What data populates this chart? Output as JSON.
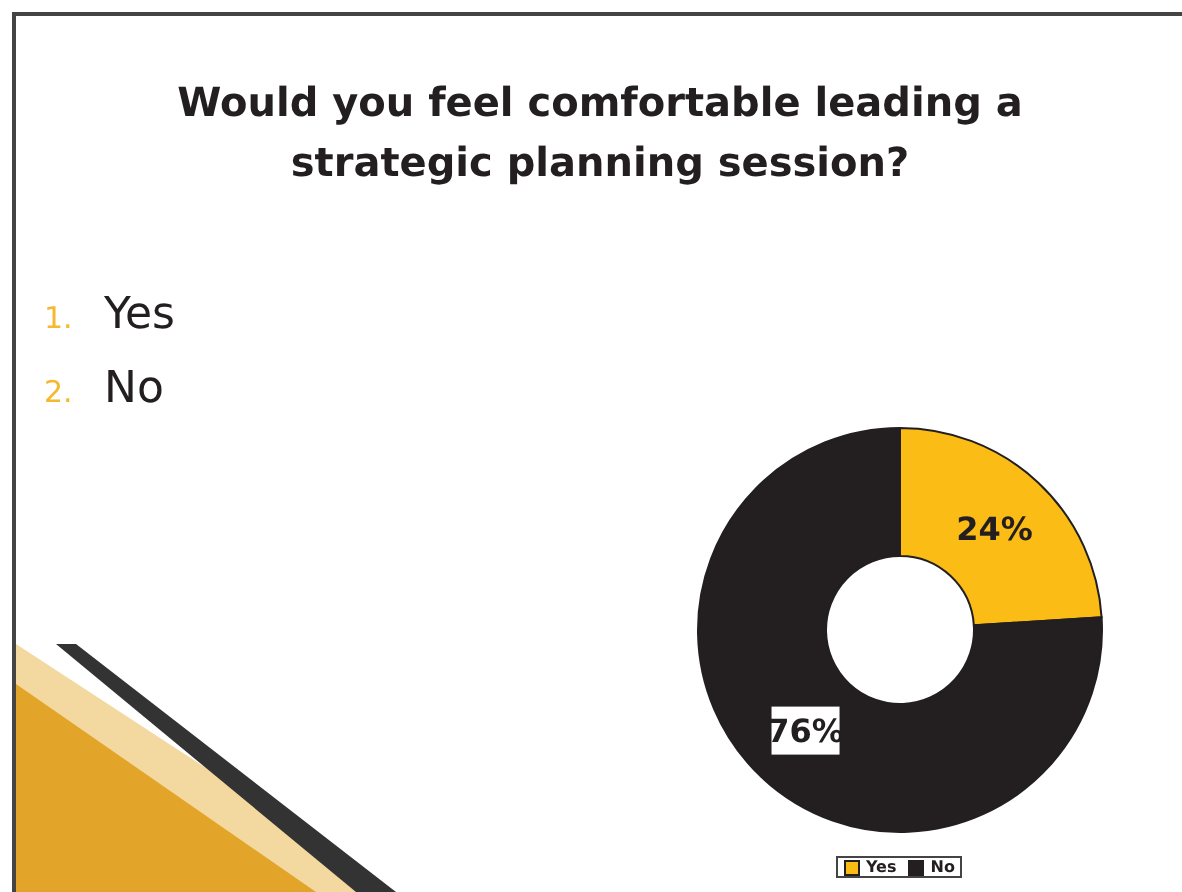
{
  "chart_data": {
    "type": "donut",
    "title": "Would you feel comfortable leading a strategic planning session?",
    "annotations": [
      "1. Yes",
      "2. No"
    ],
    "categories": [
      "Yes",
      "No"
    ],
    "values": [
      24,
      76
    ],
    "colors": [
      "#fbbc16",
      "#231f20"
    ],
    "value_labels": [
      "24%",
      "76%"
    ],
    "legend": "bottom"
  }
}
